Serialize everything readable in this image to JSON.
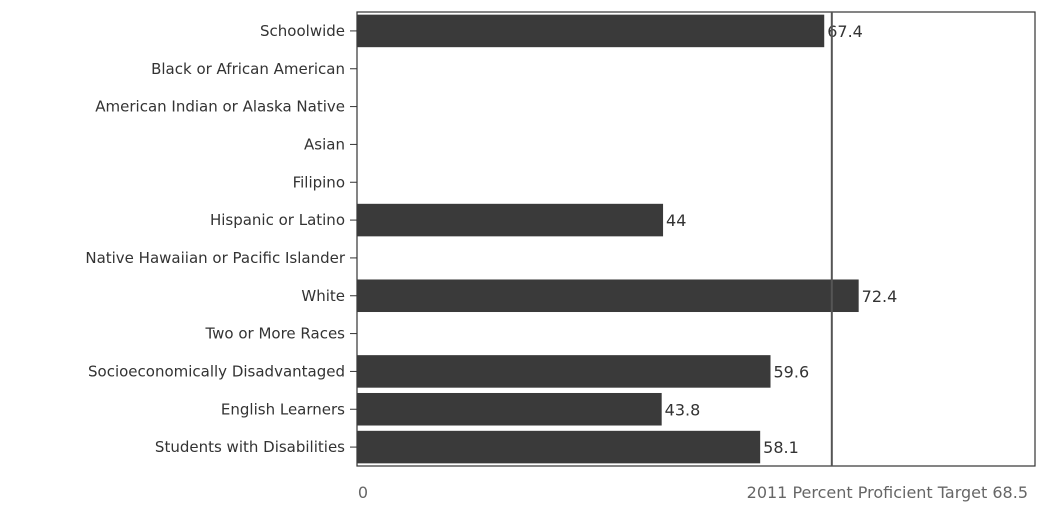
{
  "chart_data": {
    "type": "bar",
    "orientation": "horizontal",
    "categories": [
      "Schoolwide",
      "Black or African American",
      "American Indian or Alaska Native",
      "Asian",
      "Filipino",
      "Hispanic or Latino",
      "Native Hawaiian or Pacific Islander",
      "White",
      "Two or More Races",
      "Socioeconomically Disadvantaged",
      "English Learners",
      "Students with Disabilities"
    ],
    "values": [
      67.4,
      null,
      null,
      null,
      null,
      44,
      null,
      72.4,
      null,
      59.6,
      43.8,
      58.1
    ],
    "value_labels": [
      "67.4",
      "",
      "",
      "",
      "",
      "44",
      "",
      "72.4",
      "",
      "59.6",
      "43.8",
      "58.1"
    ],
    "xlim": [
      0,
      98
    ],
    "x_tick_label": "0",
    "target": {
      "value": 68.5,
      "label": "2011 Percent Proficient Target 68.5"
    },
    "grid": false,
    "legend": "none",
    "colors": {
      "bar": "#3a3a3a",
      "text": "#333333",
      "target_label": "#666666"
    }
  }
}
